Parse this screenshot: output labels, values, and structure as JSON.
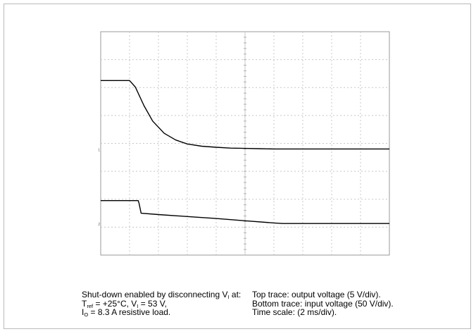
{
  "chart_data": {
    "type": "line",
    "grid": true,
    "x_divisions": 10,
    "y_divisions": 8,
    "x_unit_per_div": "2 ms/div",
    "series": [
      {
        "name": "Top trace: output voltage",
        "color": "#000000",
        "ground_marker": "1",
        "x": [
          0,
          1,
          1.2,
          1.5,
          1.8,
          2.2,
          2.6,
          3.0,
          3.5,
          4.0,
          4.5,
          5.0,
          5.5,
          6.0,
          7,
          8,
          9,
          10
        ],
        "y": [
          6.25,
          6.25,
          6.02,
          5.35,
          4.8,
          4.36,
          4.12,
          3.98,
          3.9,
          3.86,
          3.83,
          3.82,
          3.81,
          3.8,
          3.8,
          3.8,
          3.8,
          3.8
        ]
      },
      {
        "name": "Bottom trace: input voltage",
        "color": "#000000",
        "ground_marker": "2",
        "x": [
          0,
          1.3,
          1.33,
          1.4,
          2,
          3,
          4,
          5,
          6,
          6.3,
          7,
          8,
          9,
          10
        ],
        "y": [
          1.95,
          1.95,
          1.85,
          1.5,
          1.45,
          1.38,
          1.31,
          1.23,
          1.15,
          1.13,
          1.13,
          1.13,
          1.13,
          1.13
        ]
      }
    ]
  },
  "caption": {
    "left": {
      "line1_pre": "Shut-down enabled by disconnecting V",
      "line1_sub": "I",
      "line1_post": " at:",
      "line2_a": "T",
      "line2_a_sub": "ref",
      "line2_b": " = +25°C, V",
      "line2_b_sub": "I",
      "line2_c": " = 53 V,",
      "line3_a": "I",
      "line3_a_sub": "O",
      "line3_b": " = 8.3 A resistive load."
    },
    "right": {
      "line1": "Top trace: output voltage (5 V/div).",
      "line2": "Bottom trace: input voltage (50 V/div).",
      "line3": "Time scale: (2 ms/div)."
    }
  }
}
